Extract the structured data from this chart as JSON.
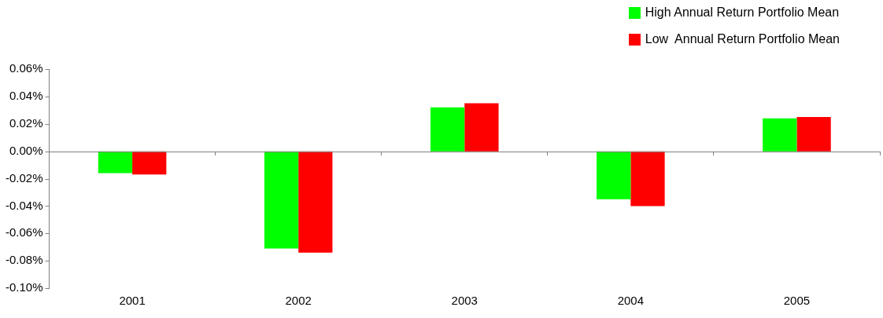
{
  "chart_data": {
    "type": "bar",
    "categories": [
      "2001",
      "2002",
      "2003",
      "2004",
      "2005"
    ],
    "series": [
      {
        "name": "High Annual Return Portfolio Mean",
        "color": "#00ff00",
        "values": [
          -0.016,
          -0.071,
          0.032,
          -0.035,
          0.024
        ]
      },
      {
        "name": "Low  Annual Return Portfolio Mean",
        "color": "#ff0000",
        "values": [
          -0.017,
          -0.074,
          0.035,
          -0.04,
          0.025
        ]
      }
    ],
    "ylim": [
      -0.1,
      0.06
    ],
    "yticks": [
      {
        "value": -0.1,
        "label": "-0.10%"
      },
      {
        "value": -0.08,
        "label": "-0.08%"
      },
      {
        "value": -0.06,
        "label": "-0.06%"
      },
      {
        "value": -0.04,
        "label": "-0.04%"
      },
      {
        "value": -0.02,
        "label": "-0.02%"
      },
      {
        "value": 0,
        "label": "0.00%"
      },
      {
        "value": 0.02,
        "label": "0.02%"
      },
      {
        "value": 0.04,
        "label": "0.04%"
      },
      {
        "value": 0.06,
        "label": "0.06%"
      }
    ],
    "ref_lines": [
      {
        "axis": "y",
        "value": 0,
        "color": "#808080"
      }
    ],
    "grid": false,
    "legend": "top right"
  }
}
